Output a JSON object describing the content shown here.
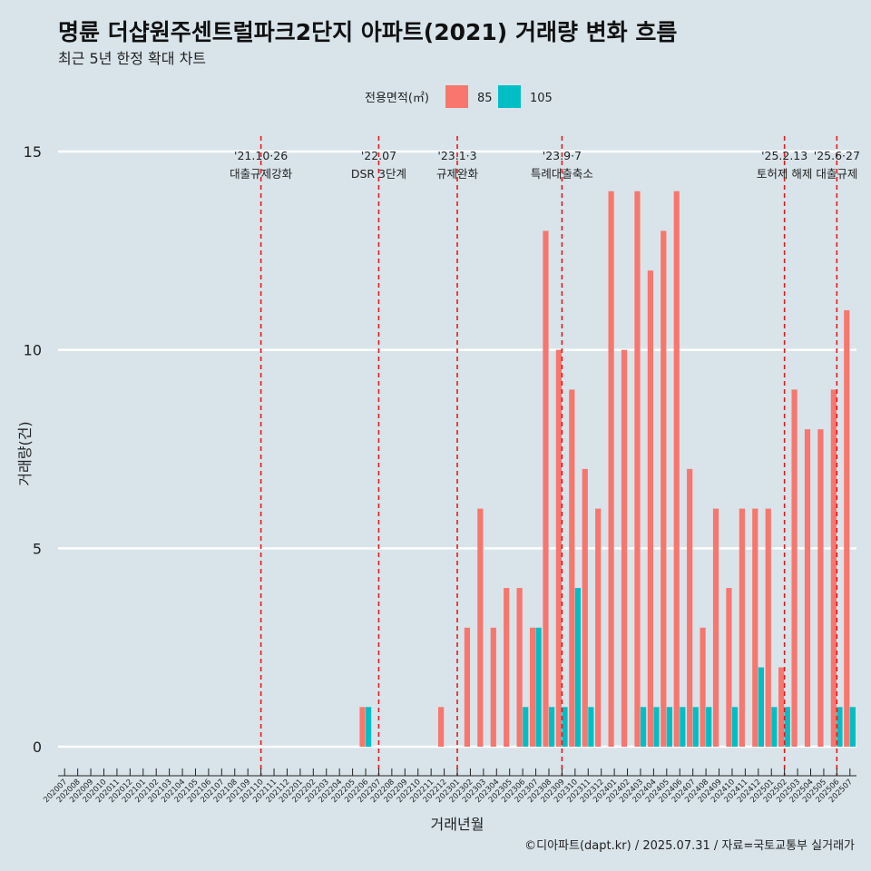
{
  "header": {
    "title": "명륜 더샵원주센트럴파크2단지 아파트(2021) 거래량 변화 흐름",
    "subtitle": "최근 5년 한정 확대 차트"
  },
  "caption": "©디아파트(dapt.kr) / 2025.07.31 / 자료=국토교통부 실거래가",
  "chart_data": {
    "type": "bar",
    "xlabel": "거래년월",
    "ylabel": "거래량(건)",
    "ylim": [
      0,
      15
    ],
    "yticks": [
      0,
      5,
      10,
      15
    ],
    "legend": {
      "title": "전용면적(㎡)",
      "position": "top"
    },
    "categories": [
      "202007",
      "202008",
      "202009",
      "202010",
      "202011",
      "202012",
      "202101",
      "202102",
      "202103",
      "202104",
      "202105",
      "202106",
      "202107",
      "202108",
      "202109",
      "202110",
      "202111",
      "202112",
      "202201",
      "202202",
      "202203",
      "202204",
      "202205",
      "202206",
      "202207",
      "202208",
      "202209",
      "202210",
      "202211",
      "202212",
      "202301",
      "202302",
      "202303",
      "202304",
      "202305",
      "202306",
      "202307",
      "202308",
      "202309",
      "202310",
      "202311",
      "202312",
      "202401",
      "202402",
      "202403",
      "202404",
      "202405",
      "202406",
      "202407",
      "202408",
      "202409",
      "202410",
      "202411",
      "202412",
      "202501",
      "202502",
      "202503",
      "202504",
      "202505",
      "202506",
      "202507"
    ],
    "series": [
      {
        "name": "85",
        "color": "#f8766d",
        "values": [
          0,
          0,
          0,
          0,
          0,
          0,
          0,
          0,
          0,
          0,
          0,
          0,
          0,
          0,
          0,
          0,
          0,
          0,
          0,
          0,
          0,
          0,
          0,
          1,
          0,
          0,
          0,
          0,
          0,
          1,
          0,
          3,
          6,
          3,
          4,
          4,
          3,
          13,
          10,
          9,
          7,
          6,
          14,
          10,
          14,
          12,
          13,
          14,
          7,
          3,
          6,
          4,
          6,
          6,
          6,
          2,
          9,
          8,
          8,
          9,
          11
        ]
      },
      {
        "name": "105",
        "color": "#00bfc4",
        "values": [
          0,
          0,
          0,
          0,
          0,
          0,
          0,
          0,
          0,
          0,
          0,
          0,
          0,
          0,
          0,
          0,
          0,
          0,
          0,
          0,
          0,
          0,
          0,
          1,
          0,
          0,
          0,
          0,
          0,
          0,
          0,
          0,
          0,
          0,
          0,
          1,
          3,
          1,
          1,
          4,
          1,
          0,
          0,
          0,
          1,
          1,
          1,
          1,
          1,
          1,
          0,
          1,
          0,
          2,
          1,
          1,
          0,
          0,
          0,
          1,
          1
        ]
      }
    ],
    "annotations": [
      {
        "category": "202110",
        "date": "'21.10·26",
        "label": "대출규제강화"
      },
      {
        "category": "202207",
        "date": "'22.07",
        "label": "DSR 3단계"
      },
      {
        "category": "202301",
        "date": "'23.1·3",
        "label": "규제완화"
      },
      {
        "category": "202309",
        "date": "'23.9·7",
        "label": "특례대출축소"
      },
      {
        "category": "202502",
        "date": "'25.2.13",
        "label": "토허제 해제"
      },
      {
        "category": "202506",
        "date": "'25.6·27",
        "label": "대출규제"
      }
    ]
  }
}
